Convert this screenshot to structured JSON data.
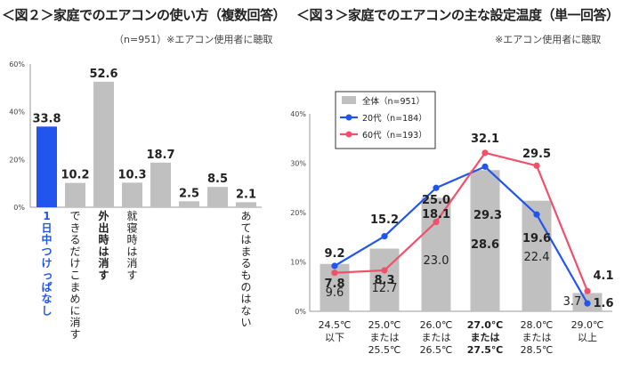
{
  "fig2": {
    "title": "＜図２＞家庭でのエアコンの使い方（複数回答）",
    "note": "（n=951）※エアコン使用者に聴取"
  },
  "fig3": {
    "title": "＜図３＞家庭でのエアコンの主な設定温度（単一回答）",
    "note": "※エアコン使用者に聴取"
  },
  "chart_data": [
    {
      "type": "bar",
      "title": "＜図２＞家庭でのエアコンの使い方（複数回答）",
      "ylim": [
        0,
        60
      ],
      "yticks": [
        "0%",
        "20%",
        "40%",
        "60%"
      ],
      "categories": [
        "1日中つけっぱなし",
        "できるだけこまめに消す",
        "外出時は消す",
        "就寝時は消す",
        "",
        "",
        "",
        "あてはまるものはない"
      ],
      "values": [
        33.8,
        10.2,
        52.6,
        10.3,
        18.7,
        2.5,
        8.5,
        2.1
      ],
      "colors": [
        "#2255ee",
        "#c0c0c0",
        "#c0c0c0",
        "#c0c0c0",
        "#c0c0c0",
        "#c0c0c0",
        "#c0c0c0",
        "#c0c0c0"
      ],
      "highlight_label_colors": {
        "0": "#2255ee"
      },
      "bold_labels": [
        0,
        2
      ]
    },
    {
      "type": "bar+line",
      "title": "＜図３＞家庭でのエアコンの主な設定温度（単一回答）",
      "ylim": [
        0,
        40
      ],
      "yticks": [
        "0%",
        "10%",
        "20%",
        "30%",
        "40%"
      ],
      "categories": [
        [
          "24.5℃",
          "以下"
        ],
        [
          "25.0℃",
          "または",
          "25.5℃"
        ],
        [
          "26.0℃",
          "または",
          "26.5℃"
        ],
        [
          "27.0℃",
          "または",
          "27.5℃"
        ],
        [
          "28.0℃",
          "または",
          "28.5℃"
        ],
        [
          "29.0℃",
          "以上"
        ]
      ],
      "bold_category": 3,
      "series": [
        {
          "name": "全体（n=951）",
          "type": "bar",
          "color": "#c0c0c0",
          "values": [
            9.6,
            12.7,
            23.0,
            28.6,
            22.4,
            3.7
          ]
        },
        {
          "name": "20代（n=184）",
          "type": "line",
          "color": "#2255ee",
          "values": [
            9.2,
            15.2,
            25.0,
            29.3,
            19.6,
            1.6
          ]
        },
        {
          "name": "60代（n=193）",
          "type": "line",
          "color": "#f0506a",
          "values": [
            7.8,
            8.3,
            18.1,
            32.1,
            29.5,
            4.1
          ]
        }
      ],
      "legend_position": "top-left"
    }
  ]
}
